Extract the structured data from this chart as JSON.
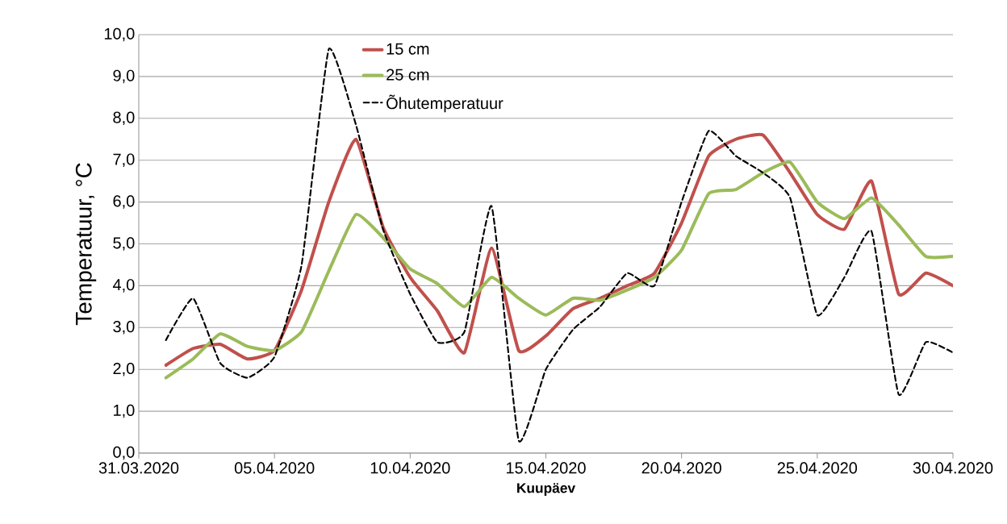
{
  "chart_data": {
    "type": "line",
    "xlabel": "Kuupäev",
    "ylabel": "Temperatuur, °C",
    "x": [
      "2020-04-01",
      "2020-04-02",
      "2020-04-03",
      "2020-04-04",
      "2020-04-05",
      "2020-04-06",
      "2020-04-07",
      "2020-04-08",
      "2020-04-09",
      "2020-04-10",
      "2020-04-11",
      "2020-04-12",
      "2020-04-13",
      "2020-04-14",
      "2020-04-15",
      "2020-04-16",
      "2020-04-17",
      "2020-04-18",
      "2020-04-19",
      "2020-04-20",
      "2020-04-21",
      "2020-04-22",
      "2020-04-23",
      "2020-04-24",
      "2020-04-25",
      "2020-04-26",
      "2020-04-27",
      "2020-04-28",
      "2020-04-29",
      "2020-04-30"
    ],
    "series": [
      {
        "name": "15 cm",
        "color": "#c0504d",
        "line_style": "solid",
        "values": [
          2.1,
          2.5,
          2.6,
          2.25,
          2.45,
          3.9,
          6.0,
          7.5,
          5.4,
          4.2,
          3.4,
          2.4,
          4.9,
          2.45,
          2.8,
          3.45,
          3.7,
          4.0,
          4.3,
          5.5,
          7.1,
          7.5,
          7.6,
          6.7,
          5.7,
          5.35,
          6.5,
          3.8,
          4.3,
          4.0
        ]
      },
      {
        "name": "25 cm",
        "color": "#9bbb59",
        "line_style": "solid",
        "values": [
          1.8,
          2.25,
          2.85,
          2.55,
          2.45,
          2.9,
          4.35,
          5.7,
          5.15,
          4.4,
          4.05,
          3.5,
          4.2,
          3.7,
          3.3,
          3.7,
          3.65,
          3.9,
          4.2,
          4.85,
          6.2,
          6.3,
          6.7,
          6.95,
          6.0,
          5.6,
          6.1,
          5.45,
          4.7,
          4.7
        ]
      },
      {
        "name": "Õhutemperatuur",
        "color": "#000000",
        "line_style": "dashed",
        "values": [
          2.7,
          3.7,
          2.15,
          1.8,
          2.3,
          4.5,
          9.65,
          7.85,
          5.35,
          3.8,
          2.65,
          2.9,
          5.9,
          0.3,
          2.0,
          2.95,
          3.5,
          4.3,
          4.0,
          6.0,
          7.7,
          7.1,
          6.7,
          6.1,
          3.3,
          4.2,
          5.3,
          1.4,
          2.65,
          2.4
        ]
      }
    ],
    "xlim": [
      "2020-03-31",
      "2020-04-30"
    ],
    "xticks": [
      {
        "value": "2020-03-31",
        "label": "31.03.2020"
      },
      {
        "value": "2020-04-05",
        "label": "05.04.2020"
      },
      {
        "value": "2020-04-10",
        "label": "10.04.2020"
      },
      {
        "value": "2020-04-15",
        "label": "15.04.2020"
      },
      {
        "value": "2020-04-20",
        "label": "20.04.2020"
      },
      {
        "value": "2020-04-25",
        "label": "25.04.2020"
      },
      {
        "value": "2020-04-30",
        "label": "30.04.2020"
      }
    ],
    "ylim": [
      0,
      10
    ],
    "yticks": [
      {
        "value": 0,
        "label": "0,0"
      },
      {
        "value": 1,
        "label": "1,0"
      },
      {
        "value": 2,
        "label": "2,0"
      },
      {
        "value": 3,
        "label": "3,0"
      },
      {
        "value": 4,
        "label": "4,0"
      },
      {
        "value": 5,
        "label": "5,0"
      },
      {
        "value": 6,
        "label": "6,0"
      },
      {
        "value": 7,
        "label": "7,0"
      },
      {
        "value": 8,
        "label": "8,0"
      },
      {
        "value": 9,
        "label": "9,0"
      },
      {
        "value": 10,
        "label": "10,0"
      }
    ],
    "grid": "y",
    "legend": "top",
    "marker": "none"
  }
}
